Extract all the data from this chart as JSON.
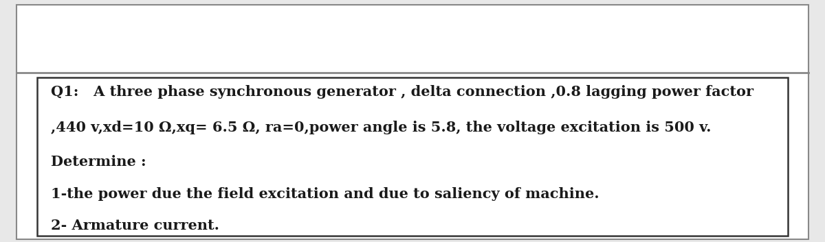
{
  "bg_color": "#e8e8e8",
  "outer_box_color": "#ffffff",
  "inner_box_color": "#ffffff",
  "outer_border_color": "#888888",
  "inner_border_color": "#333333",
  "text_color": "#1a1a1a",
  "line1": "Q1:   A three phase synchronous generator , delta connection ,0.8 lagging power factor",
  "line2": ",440 v,xd=10 Ω,xq= 6.5 Ω, ra=0,power angle is 5.8, the voltage excitation is 500 v.",
  "line3": "Determine :",
  "line4": "1-the power due the field excitation and due to saliency of machine.",
  "line5": "2- Armature current.",
  "font_size": 15.0,
  "font_family": "DejaVu Serif",
  "fig_width": 12.0,
  "fig_height": 3.53,
  "dpi": 100
}
